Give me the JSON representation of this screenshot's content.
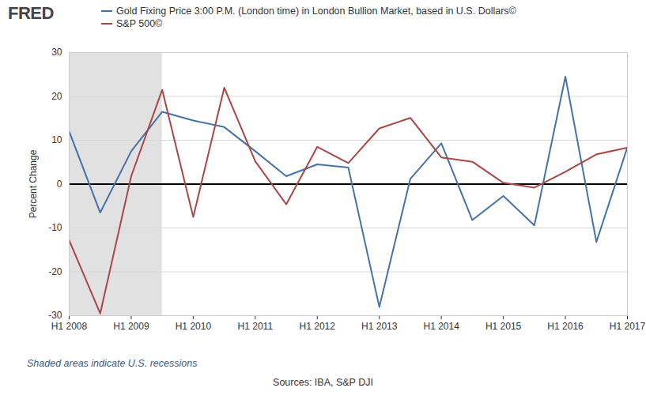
{
  "chart_data": {
    "type": "line",
    "logo": "FRED",
    "y_label": "Percent Change",
    "note": "Shaded areas indicate U.S. recessions",
    "source": "Sources: IBA, S&P DJI",
    "categories": [
      "H1 2008",
      null,
      "H1 2009",
      null,
      "H1 2010",
      null,
      "H1 2011",
      null,
      "H1 2012",
      null,
      "H1 2013",
      null,
      "H1 2014",
      null,
      "H1 2015",
      null,
      "H1 2016",
      null,
      "H1 2017"
    ],
    "recessions": [
      [
        0,
        3
      ]
    ],
    "series": [
      {
        "name": "Gold Fixing Price 3:00 P.M. (London time) in London Bullion Market, based in U.S. Dollars©",
        "color": "#4572a7",
        "values": [
          12,
          -6.5,
          7.5,
          16.5,
          14.5,
          13,
          7.5,
          1.8,
          4.5,
          3.8,
          -28,
          1.2,
          9.3,
          -8.2,
          -2.7,
          -9.4,
          24.5,
          -13.2,
          8.4
        ]
      },
      {
        "name": "S&P 500©",
        "color": "#aa4643",
        "values": [
          -12.8,
          -29.5,
          1.8,
          21.5,
          -7.5,
          22,
          5.2,
          -4.6,
          8.5,
          4.8,
          12.7,
          15.1,
          6.1,
          5.1,
          0.3,
          -0.8,
          2.8,
          6.8,
          8.3
        ]
      }
    ],
    "ylim": [
      -30,
      30
    ],
    "yticks": [
      -30,
      -20,
      -10,
      0,
      10,
      20,
      30
    ],
    "grid": true,
    "legend": "top"
  }
}
